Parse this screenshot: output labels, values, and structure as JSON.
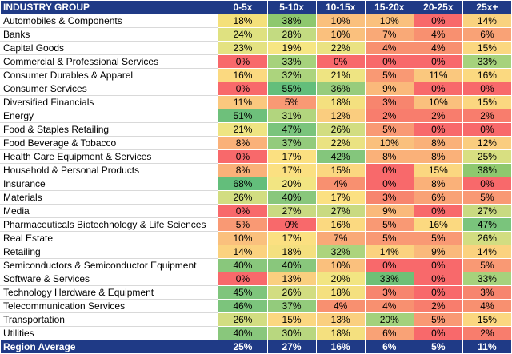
{
  "header": {
    "group_label": "INDUSTRY GROUP",
    "columns": [
      "0-5x",
      "5-10x",
      "10-15x",
      "15-20x",
      "20-25x",
      "25x+"
    ]
  },
  "rows": [
    {
      "name": "Automobiles & Components",
      "values": [
        "18%",
        "38%",
        "10%",
        "10%",
        "0%",
        "14%"
      ],
      "colors": [
        "#f4e07a",
        "#8ec86e",
        "#fac07d",
        "#fac07d",
        "#f8696b",
        "#f9d27f"
      ]
    },
    {
      "name": "Banks",
      "values": [
        "24%",
        "28%",
        "10%",
        "7%",
        "4%",
        "6%"
      ],
      "colors": [
        "#dfe180",
        "#c3db81",
        "#fac07d",
        "#f9a977",
        "#f89070",
        "#f9a276"
      ]
    },
    {
      "name": "Capital Goods",
      "values": [
        "23%",
        "19%",
        "22%",
        "4%",
        "4%",
        "15%"
      ],
      "colors": [
        "#e4e282",
        "#f6e683",
        "#eae282",
        "#f89070",
        "#f89070",
        "#fbd780"
      ]
    },
    {
      "name": "Commercial & Professional Services",
      "values": [
        "0%",
        "33%",
        "0%",
        "0%",
        "0%",
        "33%"
      ],
      "colors": [
        "#f8696b",
        "#a6d27c",
        "#f8696b",
        "#f8696b",
        "#f8696b",
        "#a6d27c"
      ]
    },
    {
      "name": "Consumer Durables & Apparel",
      "values": [
        "16%",
        "32%",
        "21%",
        "5%",
        "11%",
        "16%"
      ],
      "colors": [
        "#fbd980",
        "#acd47d",
        "#eee482",
        "#f99974",
        "#fac87e",
        "#fbd980"
      ]
    },
    {
      "name": "Consumer Services",
      "values": [
        "0%",
        "55%",
        "36%",
        "9%",
        "0%",
        "0%"
      ],
      "colors": [
        "#f8696b",
        "#63be7b",
        "#97cc7c",
        "#fab97b",
        "#f8696b",
        "#f8696b"
      ]
    },
    {
      "name": "Diversified Financials",
      "values": [
        "11%",
        "5%",
        "18%",
        "3%",
        "10%",
        "15%"
      ],
      "colors": [
        "#fac87e",
        "#f99974",
        "#f4e07f",
        "#f7856e",
        "#fac07d",
        "#fbd780"
      ]
    },
    {
      "name": "Energy",
      "values": [
        "51%",
        "31%",
        "12%",
        "2%",
        "2%",
        "2%"
      ],
      "colors": [
        "#6ec07b",
        "#b2d57e",
        "#facd7f",
        "#f87d6d",
        "#f87d6d",
        "#f87d6d"
      ]
    },
    {
      "name": "Food & Staples Retailing",
      "values": [
        "21%",
        "47%",
        "26%",
        "5%",
        "0%",
        "0%"
      ],
      "colors": [
        "#eee482",
        "#7ac47c",
        "#d2dd81",
        "#f99974",
        "#f8696b",
        "#f8696b"
      ]
    },
    {
      "name": "Food Beverage & Tobacco",
      "values": [
        "8%",
        "37%",
        "22%",
        "10%",
        "8%",
        "12%"
      ],
      "colors": [
        "#fab179",
        "#93cb7c",
        "#eae282",
        "#fac07d",
        "#fab179",
        "#facd7f"
      ]
    },
    {
      "name": "Health Care Equipment & Services",
      "values": [
        "0%",
        "17%",
        "42%",
        "8%",
        "8%",
        "25%"
      ],
      "colors": [
        "#f8696b",
        "#fbe081",
        "#84c67c",
        "#fab179",
        "#fab179",
        "#d8df81"
      ]
    },
    {
      "name": "Household & Personal Products",
      "values": [
        "8%",
        "17%",
        "15%",
        "0%",
        "15%",
        "38%"
      ],
      "colors": [
        "#fab179",
        "#fbe081",
        "#fbd780",
        "#f8696b",
        "#fbd780",
        "#8ec86e"
      ]
    },
    {
      "name": "Insurance",
      "values": [
        "68%",
        "20%",
        "4%",
        "0%",
        "8%",
        "0%"
      ],
      "colors": [
        "#63be7b",
        "#f2e582",
        "#f89070",
        "#f8696b",
        "#fab179",
        "#f8696b"
      ]
    },
    {
      "name": "Materials",
      "values": [
        "26%",
        "40%",
        "17%",
        "3%",
        "6%",
        "5%"
      ],
      "colors": [
        "#d2dd81",
        "#89c77c",
        "#fbe081",
        "#f7856e",
        "#f9a276",
        "#f99974"
      ]
    },
    {
      "name": "Media",
      "values": [
        "0%",
        "27%",
        "27%",
        "9%",
        "0%",
        "27%"
      ],
      "colors": [
        "#f8696b",
        "#c9da81",
        "#c9da81",
        "#fab97b",
        "#f8696b",
        "#c9da81"
      ]
    },
    {
      "name": "Pharmaceuticals Biotechnology & Life Sciences",
      "values": [
        "5%",
        "0%",
        "16%",
        "5%",
        "16%",
        "47%"
      ],
      "colors": [
        "#f99974",
        "#f8696b",
        "#fbd980",
        "#f99974",
        "#fbd980",
        "#7ac47c"
      ]
    },
    {
      "name": "Real Estate",
      "values": [
        "10%",
        "17%",
        "7%",
        "5%",
        "5%",
        "26%"
      ],
      "colors": [
        "#fac07d",
        "#fbe081",
        "#f9a977",
        "#f99974",
        "#f99974",
        "#d2dd81"
      ]
    },
    {
      "name": "Retailing",
      "values": [
        "14%",
        "18%",
        "32%",
        "14%",
        "9%",
        "14%"
      ],
      "colors": [
        "#fbd27f",
        "#f4e07f",
        "#acd47d",
        "#fbd27f",
        "#fab97b",
        "#fbd27f"
      ]
    },
    {
      "name": "Semiconductors & Semiconductor Equipment",
      "values": [
        "40%",
        "40%",
        "10%",
        "0%",
        "0%",
        "5%"
      ],
      "colors": [
        "#89c77c",
        "#89c77c",
        "#fac07d",
        "#f8696b",
        "#f8696b",
        "#f99974"
      ]
    },
    {
      "name": "Software & Services",
      "values": [
        "0%",
        "13%",
        "20%",
        "33%",
        "0%",
        "33%"
      ],
      "colors": [
        "#f8696b",
        "#facf7f",
        "#f2e582",
        "#6fbf76",
        "#f8696b",
        "#a6d27c"
      ]
    },
    {
      "name": "Technology Hardware & Equipment",
      "values": [
        "45%",
        "26%",
        "18%",
        "3%",
        "0%",
        "3%"
      ],
      "colors": [
        "#7fc57c",
        "#d2dd81",
        "#f4e07f",
        "#f7856e",
        "#f8696b",
        "#f7856e"
      ]
    },
    {
      "name": "Telecommunication Services",
      "values": [
        "46%",
        "37%",
        "4%",
        "4%",
        "2%",
        "4%"
      ],
      "colors": [
        "#7cc47c",
        "#93cb7c",
        "#f89070",
        "#f89070",
        "#f87d6d",
        "#f89070"
      ]
    },
    {
      "name": "Transportation",
      "values": [
        "26%",
        "15%",
        "13%",
        "20%",
        "5%",
        "15%"
      ],
      "colors": [
        "#d2dd81",
        "#fbd780",
        "#facf7f",
        "#a3d17c",
        "#f99974",
        "#fbd780"
      ]
    },
    {
      "name": "Utilities",
      "values": [
        "40%",
        "30%",
        "18%",
        "6%",
        "0%",
        "2%"
      ],
      "colors": [
        "#89c77c",
        "#b8d77f",
        "#f4e07f",
        "#f9a276",
        "#f8696b",
        "#f87d6d"
      ]
    }
  ],
  "footer": {
    "label": "Region Average",
    "values": [
      "25%",
      "27%",
      "16%",
      "6%",
      "5%",
      "11%"
    ]
  },
  "colors": {
    "header_bg": "#1f3a86",
    "header_text": "#ffffff",
    "scale_low": "#f8696b",
    "scale_mid": "#ffeb84",
    "scale_high": "#63be7b"
  }
}
